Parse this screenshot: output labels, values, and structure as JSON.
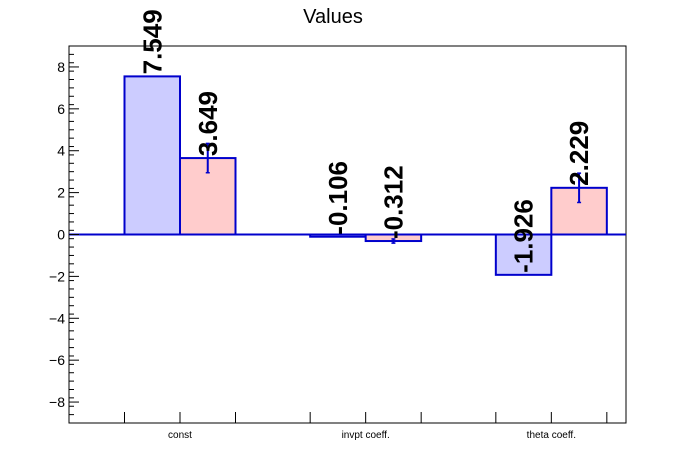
{
  "chart_data": {
    "type": "bar",
    "title": "Values",
    "xlabel": "",
    "ylabel": "",
    "categories": [
      "const",
      "invpt coeff.",
      "theta coeff."
    ],
    "ylim": [
      -9,
      9
    ],
    "y_ticks": [
      -8,
      -6,
      -4,
      -2,
      0,
      2,
      4,
      6,
      8
    ],
    "y_tick_labels": [
      "−8",
      "−6",
      "−4",
      "−2",
      "0",
      "2",
      "4",
      "6",
      "8"
    ],
    "grid": false,
    "legend": "none",
    "series": [
      {
        "color": "#ccccff",
        "values": [
          7.549,
          -0.106,
          -1.926
        ],
        "labels": [
          "7.549",
          "-0.106",
          "-1.926"
        ],
        "errors": [
          0,
          0,
          0
        ]
      },
      {
        "color": "#ffcccc",
        "values": [
          3.649,
          -0.312,
          2.229
        ],
        "labels": [
          "3.649",
          "-0.312",
          "2.229"
        ],
        "errors": [
          0.7,
          0.1,
          0.7
        ]
      }
    ],
    "edge_color": "#0000cc",
    "error_color": "#0000cc"
  }
}
